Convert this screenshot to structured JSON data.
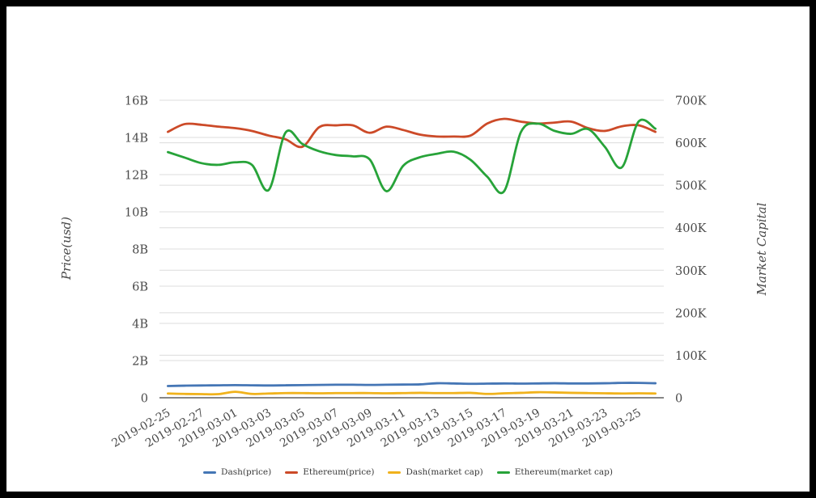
{
  "figure": {
    "background": "#ffffff",
    "border_color": "#000000"
  },
  "chart_data": {
    "type": "line",
    "title": "",
    "x": [
      "2019-02-25",
      "2019-02-26",
      "2019-02-27",
      "2019-02-28",
      "2019-03-01",
      "2019-03-02",
      "2019-03-03",
      "2019-03-04",
      "2019-03-05",
      "2019-03-06",
      "2019-03-07",
      "2019-03-08",
      "2019-03-09",
      "2019-03-10",
      "2019-03-11",
      "2019-03-12",
      "2019-03-13",
      "2019-03-14",
      "2019-03-15",
      "2019-03-16",
      "2019-03-17",
      "2019-03-18",
      "2019-03-19",
      "2019-03-20",
      "2019-03-21",
      "2019-03-22",
      "2019-03-23",
      "2019-03-24",
      "2019-03-25",
      "2019-03-26"
    ],
    "x_label_interval": 2,
    "x_tick_labels": [
      "2019-02-25",
      "2019-02-27",
      "2019-03-01",
      "2019-03-03",
      "2019-03-05",
      "2019-03-07",
      "2019-03-09",
      "2019-03-11",
      "2019-03-13",
      "2019-03-15",
      "2019-03-17",
      "2019-03-19",
      "2019-03-21",
      "2019-03-23",
      "2019-03-25"
    ],
    "left_axis": {
      "title": "Price(usd)",
      "min": 0,
      "max": 16,
      "unit": "B",
      "tick_labels": [
        "0",
        "2B",
        "4B",
        "6B",
        "8B",
        "10B",
        "12B",
        "14B",
        "16B"
      ]
    },
    "right_axis": {
      "title": "Market Capital",
      "min": 0,
      "max": 700,
      "unit": "K",
      "tick_labels": [
        "0",
        "100K",
        "200K",
        "300K",
        "400K",
        "500K",
        "600K",
        "700K"
      ]
    },
    "grid": true,
    "legend_position": "bottom",
    "series": [
      {
        "name": "Dash(price)",
        "axis": "left",
        "color": "#4576b5",
        "values": [
          0.63,
          0.65,
          0.66,
          0.67,
          0.68,
          0.67,
          0.66,
          0.67,
          0.68,
          0.69,
          0.7,
          0.7,
          0.69,
          0.7,
          0.71,
          0.72,
          0.78,
          0.77,
          0.75,
          0.76,
          0.77,
          0.76,
          0.77,
          0.78,
          0.77,
          0.77,
          0.78,
          0.8,
          0.8,
          0.78
        ]
      },
      {
        "name": "Ethereum(price)",
        "axis": "left",
        "color": "#cc4a28",
        "values": [
          14.3,
          14.72,
          14.68,
          14.58,
          14.5,
          14.35,
          14.1,
          13.9,
          13.5,
          14.55,
          14.65,
          14.65,
          14.25,
          14.58,
          14.4,
          14.15,
          14.05,
          14.05,
          14.1,
          14.75,
          15.0,
          14.85,
          14.75,
          14.8,
          14.85,
          14.5,
          14.35,
          14.6,
          14.65,
          14.3
        ]
      },
      {
        "name": "Dash(market cap)",
        "axis": "right",
        "color": "#f0b21c",
        "values": [
          10,
          9,
          8.5,
          8.5,
          14,
          9,
          10,
          11,
          11,
          10.5,
          11,
          11,
          11,
          10.5,
          11,
          11.5,
          11,
          11,
          11.5,
          9,
          10.5,
          11.5,
          13,
          12.5,
          11.5,
          11,
          10.5,
          10,
          10.5,
          10
        ]
      },
      {
        "name": "Ethereum(market cap)",
        "axis": "right",
        "color": "#27a339",
        "values": [
          578,
          565,
          552,
          548,
          554,
          548,
          489,
          624,
          597,
          580,
          571,
          568,
          561,
          486,
          546,
          566,
          574,
          579,
          560,
          520,
          486,
          625,
          645,
          628,
          621,
          632,
          590,
          542,
          650,
          633
        ]
      }
    ]
  }
}
